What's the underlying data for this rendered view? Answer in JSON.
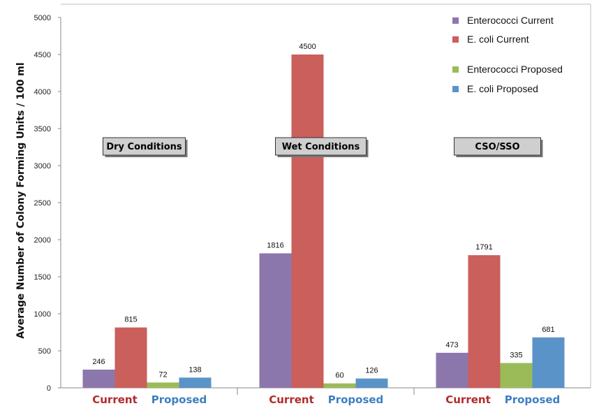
{
  "chart_data": {
    "type": "bar",
    "title": "",
    "ylabel": "Average Number of Colony Forming Units / 100 ml",
    "ylim": [
      0,
      5000
    ],
    "yticks": [
      0,
      500,
      1000,
      1500,
      2000,
      2500,
      3000,
      3500,
      4000,
      4500,
      5000
    ],
    "grid": false,
    "legend_position": "top-right",
    "groups": [
      {
        "label": "Dry Conditions",
        "subcategories": [
          "Current",
          "Proposed"
        ],
        "values": {
          "Enterococci Current": 246,
          "E. coli Current": 815,
          "Enterococci Proposed": 72,
          "E. coli Proposed": 138
        }
      },
      {
        "label": "Wet Conditions",
        "subcategories": [
          "Current",
          "Proposed"
        ],
        "values": {
          "Enterococci Current": 1816,
          "E. coli Current": 4500,
          "Enterococci Proposed": 60,
          "E. coli Proposed": 126
        }
      },
      {
        "label": "CSO/SSO",
        "subcategories": [
          "Current",
          "Proposed"
        ],
        "values": {
          "Enterococci Current": 473,
          "E. coli Current": 1791,
          "Enterococci Proposed": 335,
          "E. coli Proposed": 681
        }
      }
    ],
    "series": [
      {
        "name": "Enterococci Current",
        "color": "#8c77ad"
      },
      {
        "name": "E. coli Current",
        "color": "#ca5f5c"
      },
      {
        "name": "Enterococci Proposed",
        "color": "#9bbb59"
      },
      {
        "name": "E. coli Proposed",
        "color": "#5a93c8"
      }
    ],
    "subcategory_colors": {
      "Current": "#b22b2b",
      "Proposed": "#3d7fc1"
    }
  }
}
